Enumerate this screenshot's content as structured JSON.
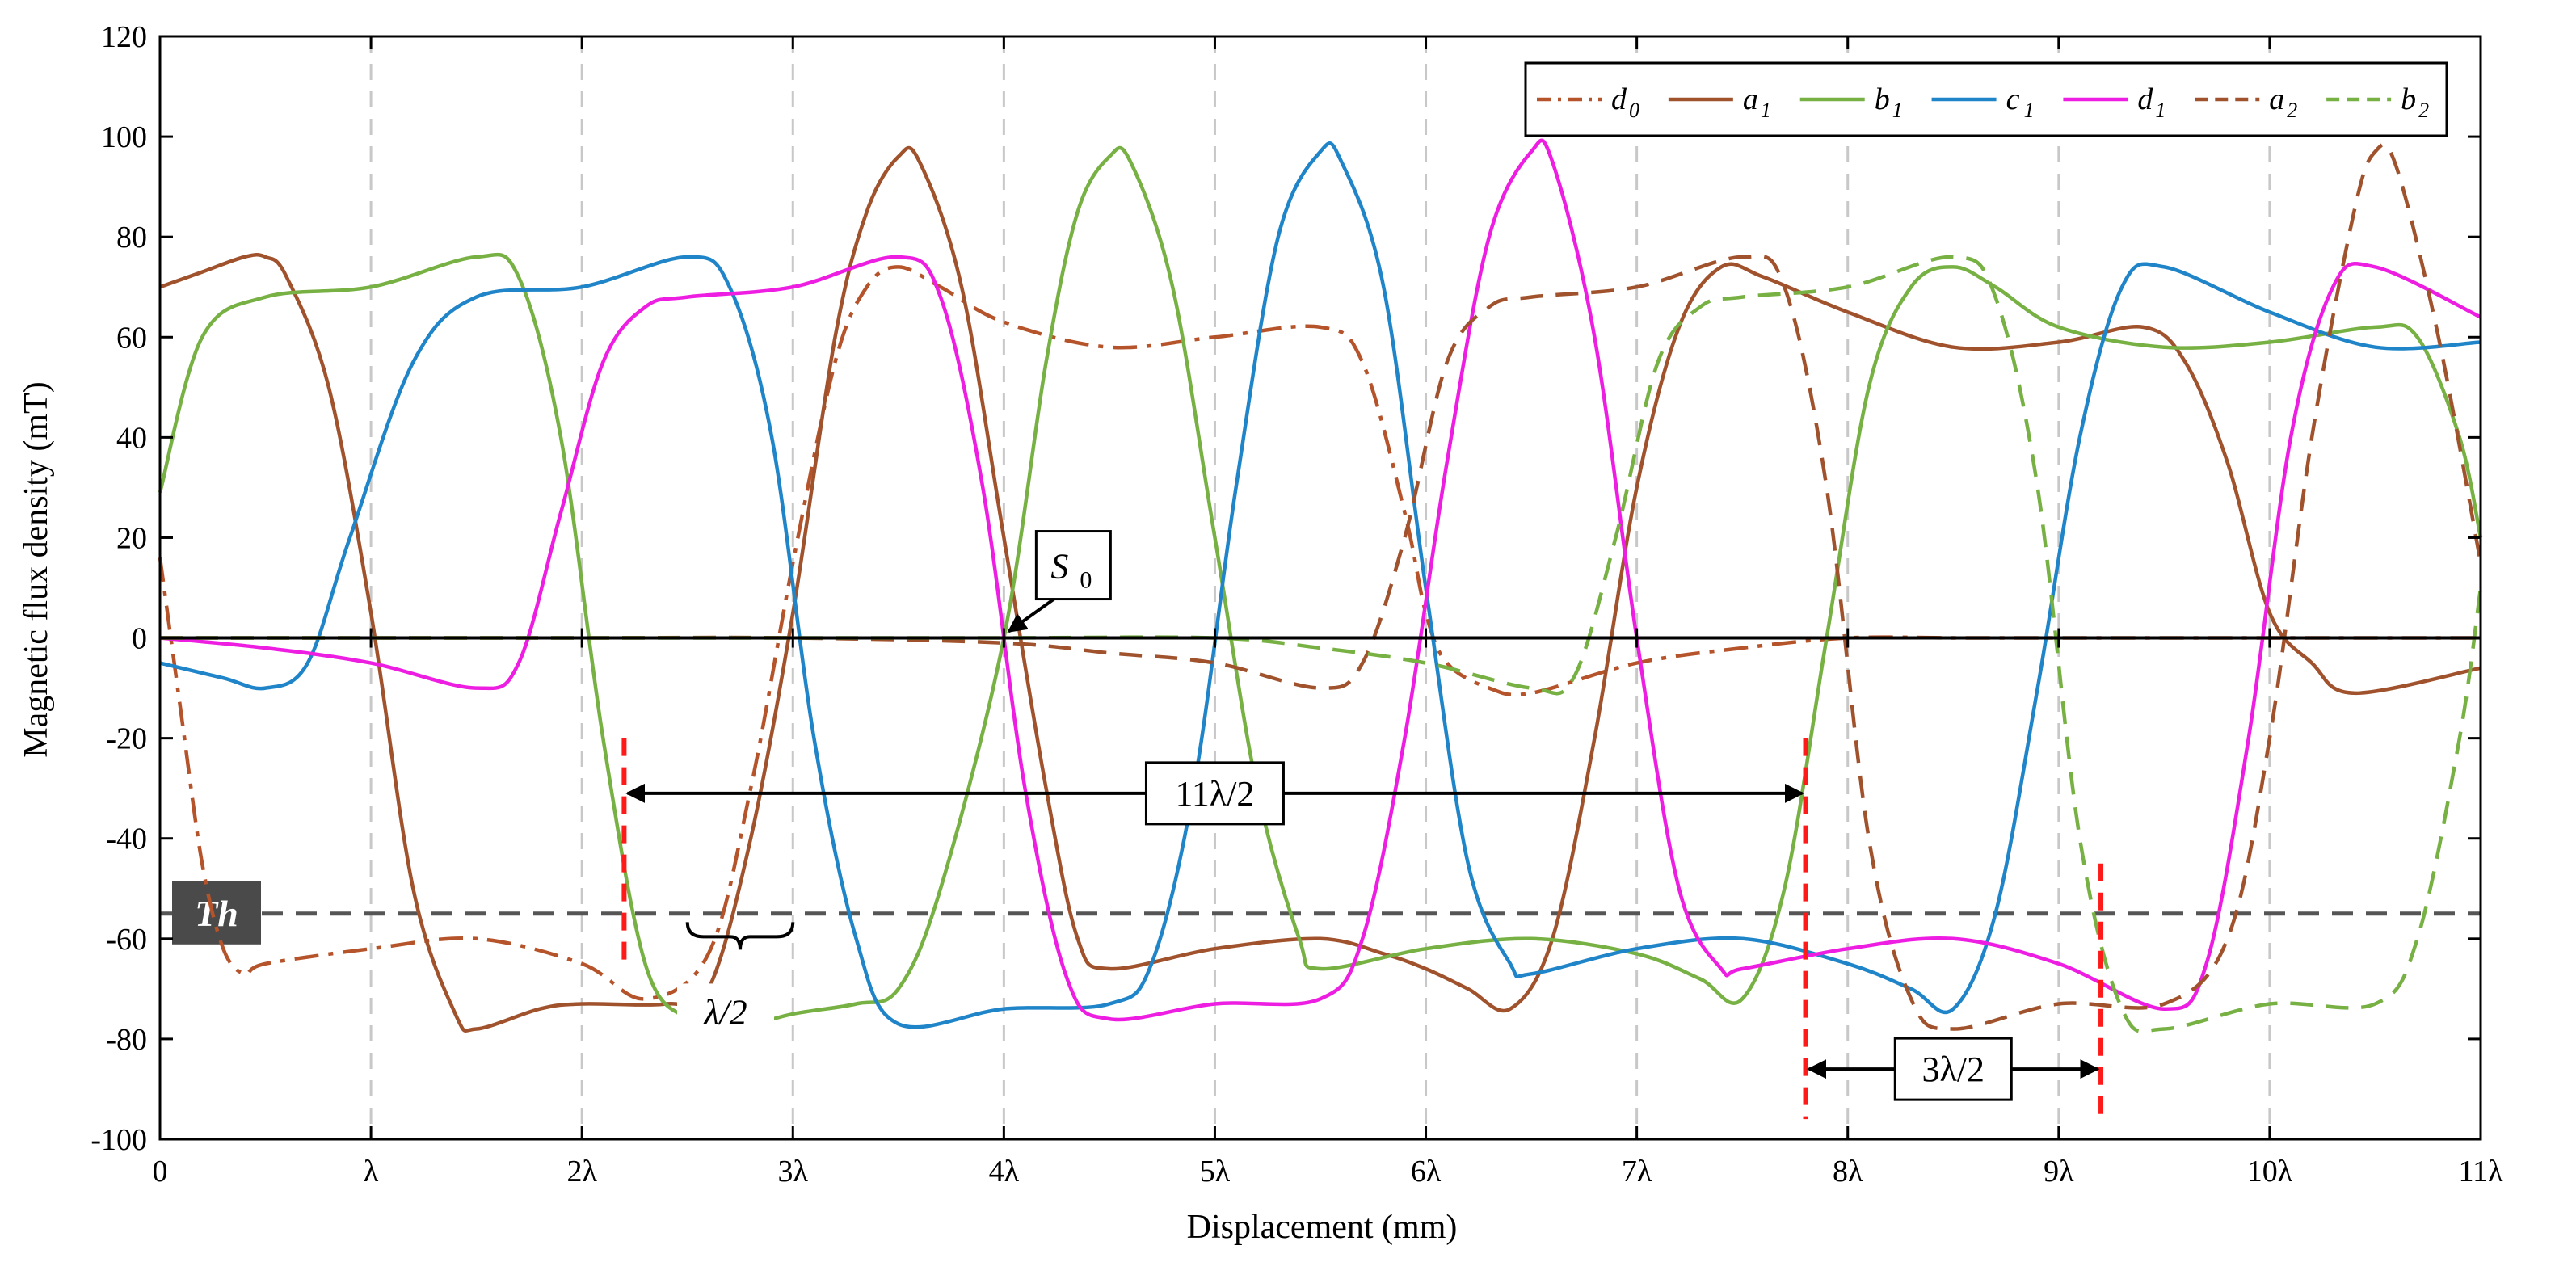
{
  "chart_data": {
    "type": "line",
    "xlabel": "Displacement (mm)",
    "ylabel": "Magnetic flux density (mT)",
    "xlim": [
      0,
      11
    ],
    "ylim": [
      -100,
      120
    ],
    "x_ticks": [
      0,
      1,
      2,
      3,
      4,
      5,
      6,
      7,
      8,
      9,
      10,
      11
    ],
    "x_tick_labels": [
      "0",
      "λ",
      "2λ",
      "3λ",
      "4λ",
      "5λ",
      "6λ",
      "7λ",
      "8λ",
      "9λ",
      "10λ",
      "11λ"
    ],
    "y_ticks": [
      -100,
      -80,
      -60,
      -40,
      -20,
      0,
      20,
      40,
      60,
      80,
      100,
      120
    ],
    "y_tick_labels": [
      "-100",
      "-80",
      "-60",
      "-40",
      "-20",
      "0",
      "20",
      "40",
      "60",
      "80",
      "100",
      "120"
    ],
    "x_grid": "dashed-vertical",
    "legend_position": "top-right",
    "threshold": {
      "label": "Th",
      "value": -55,
      "style": "dashed",
      "color": "#555555"
    },
    "series": [
      {
        "name": "d",
        "sub": "0",
        "color": "#B5532A",
        "dash": "dashdot",
        "x": [
          0,
          0.1,
          0.2,
          0.3,
          0.4,
          0.5,
          1.0,
          1.5,
          2.0,
          2.3,
          2.6,
          2.8,
          3.0,
          3.2,
          3.35,
          3.5,
          3.7,
          4.0,
          4.5,
          5.0,
          5.5,
          5.7,
          5.9,
          6.0,
          6.1,
          6.3,
          6.5,
          7.0,
          7.5,
          8.0,
          8.5,
          9.0,
          9.5,
          10.0,
          10.5,
          11.0
        ],
        "values": [
          16,
          -15,
          -45,
          -62,
          -67,
          -65,
          -62,
          -60,
          -65,
          -72,
          -63,
          -30,
          15,
          55,
          70,
          74,
          70,
          63,
          58,
          60,
          62,
          55,
          25,
          5,
          -5,
          -10,
          -11,
          -5,
          -2,
          0,
          0,
          0,
          0,
          0,
          0,
          0
        ]
      },
      {
        "name": "a",
        "sub": "1",
        "color": "#A0522D",
        "dash": "solid",
        "x": [
          0,
          0.2,
          0.4,
          0.5,
          0.6,
          0.8,
          1.0,
          1.2,
          1.4,
          1.5,
          1.8,
          2.0,
          2.4,
          2.6,
          2.8,
          3.0,
          3.2,
          3.35,
          3.5,
          3.6,
          3.8,
          4.0,
          4.2,
          4.35,
          4.5,
          5.0,
          5.5,
          5.8,
          6.0,
          6.2,
          6.4,
          6.6,
          6.8,
          7.0,
          7.2,
          7.4,
          7.6,
          8.0,
          8.5,
          9.0,
          9.4,
          9.6,
          9.8,
          10.0,
          10.2,
          10.4,
          11.0
        ],
        "values": [
          70,
          73,
          76,
          76,
          72,
          50,
          5,
          -50,
          -75,
          -78,
          -74,
          -73,
          -73,
          -70,
          -40,
          5,
          60,
          85,
          96,
          95,
          70,
          20,
          -30,
          -60,
          -66,
          -62,
          -60,
          -63,
          -66,
          -70,
          -74,
          -60,
          -20,
          30,
          62,
          74,
          72,
          65,
          58,
          59,
          62,
          55,
          35,
          5,
          -5,
          -11,
          -6
        ]
      },
      {
        "name": "b",
        "sub": "1",
        "color": "#77B043",
        "dash": "solid",
        "x": [
          0,
          0.2,
          0.5,
          1.0,
          1.5,
          1.7,
          1.9,
          2.1,
          2.3,
          2.5,
          2.7,
          3.0,
          3.3,
          3.5,
          3.7,
          4.0,
          4.2,
          4.35,
          4.5,
          4.6,
          4.8,
          5.0,
          5.2,
          5.4,
          5.5,
          6.0,
          6.5,
          7.0,
          7.3,
          7.5,
          7.7,
          7.9,
          8.1,
          8.3,
          8.5,
          8.7,
          9.0,
          9.5,
          10.0,
          10.5,
          10.7,
          10.9,
          11.0
        ],
        "values": [
          29,
          60,
          68,
          70,
          76,
          72,
          40,
          -20,
          -65,
          -76,
          -78,
          -75,
          -73,
          -70,
          -50,
          0,
          55,
          85,
          96,
          95,
          70,
          20,
          -30,
          -60,
          -66,
          -62,
          -60,
          -63,
          -68,
          -72,
          -50,
          0,
          50,
          70,
          74,
          70,
          62,
          58,
          59,
          62,
          60,
          40,
          20
        ]
      },
      {
        "name": "c",
        "sub": "1",
        "color": "#1F85C8",
        "dash": "solid",
        "x": [
          0,
          0.3,
          0.5,
          0.7,
          0.9,
          1.2,
          1.5,
          2.0,
          2.5,
          2.7,
          2.9,
          3.1,
          3.3,
          3.5,
          4.0,
          4.5,
          4.7,
          4.9,
          5.1,
          5.3,
          5.5,
          5.6,
          5.8,
          6.0,
          6.2,
          6.4,
          6.5,
          7.0,
          7.5,
          8.0,
          8.3,
          8.5,
          8.7,
          8.9,
          9.1,
          9.3,
          9.5,
          10.0,
          10.5,
          11.0
        ],
        "values": [
          -5,
          -8,
          -10,
          -5,
          20,
          55,
          68,
          70,
          76,
          70,
          40,
          -20,
          -60,
          -77,
          -74,
          -73,
          -65,
          -30,
          30,
          80,
          97,
          95,
          70,
          10,
          -45,
          -65,
          -67,
          -62,
          -60,
          -65,
          -70,
          -74,
          -55,
          -10,
          40,
          70,
          74,
          65,
          58,
          59
        ]
      },
      {
        "name": "d",
        "sub": "1",
        "color": "#EE1DE2",
        "dash": "solid",
        "x": [
          0,
          0.5,
          1.0,
          1.5,
          1.7,
          1.9,
          2.1,
          2.3,
          2.5,
          3.0,
          3.5,
          3.7,
          3.9,
          4.1,
          4.3,
          4.5,
          5.0,
          5.5,
          5.7,
          5.9,
          6.1,
          6.3,
          6.5,
          6.6,
          6.8,
          7.0,
          7.2,
          7.4,
          7.5,
          8.0,
          8.5,
          9.0,
          9.5,
          9.7,
          9.9,
          10.1,
          10.3,
          10.5,
          11.0
        ],
        "values": [
          0,
          -2,
          -5,
          -10,
          -5,
          25,
          55,
          66,
          68,
          70,
          76,
          68,
          30,
          -30,
          -68,
          -76,
          -73,
          -72,
          -60,
          -20,
          35,
          80,
          97,
          95,
          60,
          0,
          -50,
          -66,
          -66,
          -62,
          -60,
          -65,
          -74,
          -65,
          -20,
          40,
          70,
          74,
          64
        ]
      },
      {
        "name": "a",
        "sub": "2",
        "color": "#A0522D",
        "dash": "dashed",
        "x": [
          0,
          1.0,
          2.0,
          3.0,
          4.0,
          4.5,
          5.0,
          5.5,
          5.7,
          5.9,
          6.1,
          6.3,
          6.5,
          7.0,
          7.5,
          7.7,
          7.9,
          8.1,
          8.3,
          8.5,
          9.0,
          9.5,
          9.8,
          10.0,
          10.2,
          10.4,
          10.5,
          10.6,
          10.8,
          11.0
        ],
        "values": [
          0,
          0,
          0,
          0,
          -1,
          -3,
          -5,
          -10,
          -5,
          20,
          55,
          66,
          68,
          70,
          76,
          70,
          30,
          -40,
          -72,
          -78,
          -73,
          -73,
          -60,
          -20,
          40,
          85,
          97,
          94,
          60,
          15
        ]
      },
      {
        "name": "b",
        "sub": "2",
        "color": "#77B043",
        "dash": "dashed",
        "x": [
          0,
          1.0,
          2.0,
          3.0,
          4.0,
          5.0,
          5.5,
          6.0,
          6.5,
          6.7,
          6.9,
          7.1,
          7.3,
          7.5,
          8.0,
          8.5,
          8.7,
          8.9,
          9.1,
          9.3,
          9.5,
          10.0,
          10.5,
          10.7,
          10.9,
          11.0
        ],
        "values": [
          0,
          0,
          0,
          0,
          0,
          0,
          -2,
          -5,
          -10,
          -8,
          20,
          55,
          66,
          68,
          70,
          76,
          68,
          30,
          -40,
          -74,
          -78,
          -73,
          -73,
          -60,
          -20,
          10
        ]
      }
    ],
    "annotations": [
      {
        "kind": "label",
        "text_main": "S",
        "text_sub": "0",
        "points_to": [
          4.0,
          0
        ]
      },
      {
        "kind": "span",
        "text": "11λ/2",
        "from": 2.2,
        "to": 7.8,
        "y": -31
      },
      {
        "kind": "span",
        "text": "3λ/2",
        "from": 7.8,
        "to": 9.2,
        "y": -86
      },
      {
        "kind": "brace",
        "text": "λ/2",
        "from": 2.5,
        "to": 3.0,
        "y": -58
      }
    ],
    "red_markers_x": [
      2.2,
      7.8,
      9.2
    ]
  }
}
